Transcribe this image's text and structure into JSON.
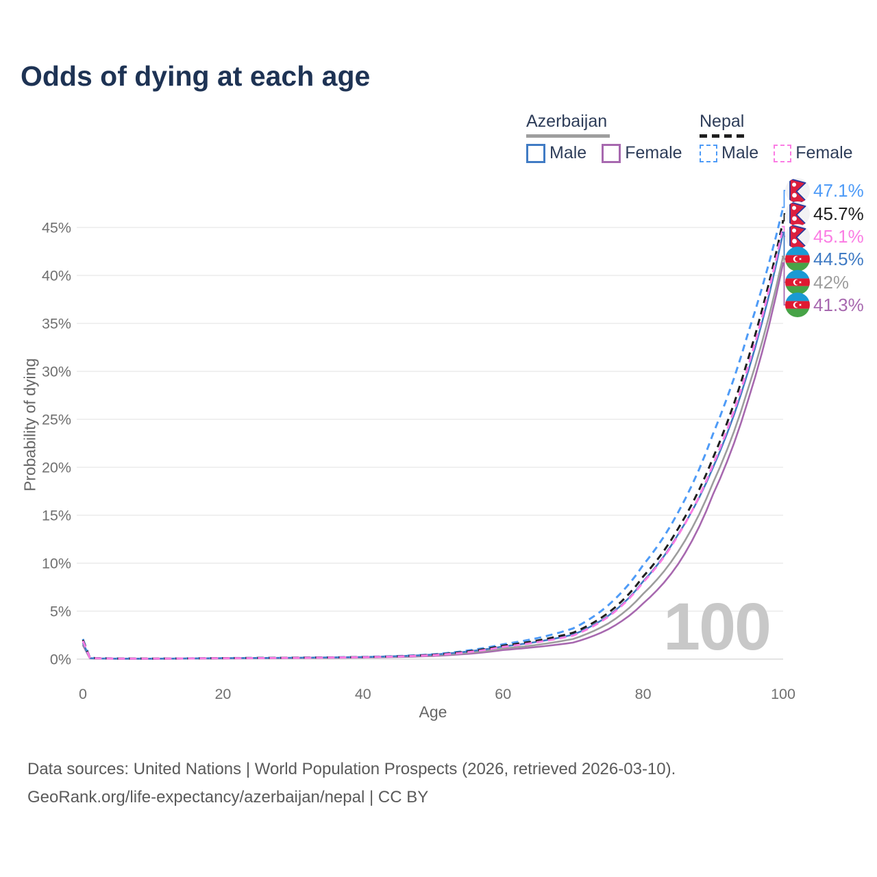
{
  "title": "Odds of dying at each age",
  "watermark": "100",
  "legend": {
    "azerbaijan": {
      "name": "Azerbaijan",
      "male": "Male",
      "female": "Female",
      "line_style": "solid",
      "line_color": "#9D9D9D"
    },
    "nepal": {
      "name": "Nepal",
      "male": "Male",
      "female": "Female",
      "line_style": "dashed",
      "line_color": "#1F1F1F"
    }
  },
  "axes": {
    "y_label": "Probability of dying",
    "x_label": "Age",
    "y_ticks": [
      0,
      5,
      10,
      15,
      20,
      25,
      30,
      35,
      40,
      45
    ],
    "y_tick_suffix": "%",
    "x_ticks": [
      0,
      20,
      40,
      60,
      80,
      100
    ]
  },
  "chart_data": {
    "type": "line",
    "title": "Odds of dying at each age",
    "xlabel": "Age",
    "ylabel": "Probability of dying",
    "x_range": [
      0,
      100
    ],
    "y_range_percent": [
      0,
      45
    ],
    "grid": "horizontal",
    "legend_position": "top-right",
    "ages": [
      0,
      1,
      2,
      5,
      10,
      15,
      20,
      25,
      30,
      35,
      40,
      45,
      50,
      55,
      60,
      65,
      70,
      75,
      80,
      85,
      90,
      95,
      100
    ],
    "series": [
      {
        "id": "nepal-male",
        "name": "Nepal Male",
        "country": "nepal",
        "sex": "Male",
        "style": "dashed",
        "color": "#4E9BF7",
        "end_label": "47.1%",
        "end_value": 47.1,
        "values": [
          2.1,
          0.15,
          0.1,
          0.07,
          0.06,
          0.08,
          0.11,
          0.13,
          0.15,
          0.18,
          0.23,
          0.32,
          0.5,
          0.9,
          1.55,
          2.2,
          3.2,
          5.6,
          9.8,
          15.3,
          23.5,
          34.0,
          47.1
        ]
      },
      {
        "id": "nepal-both",
        "name": "Nepal Both sexes",
        "country": "nepal",
        "sex": "Both",
        "style": "dashed",
        "color": "#1F1F1F",
        "end_label": "45.7%",
        "end_value": 45.7,
        "values": [
          2.0,
          0.14,
          0.09,
          0.065,
          0.055,
          0.075,
          0.1,
          0.12,
          0.14,
          0.17,
          0.21,
          0.29,
          0.45,
          0.8,
          1.4,
          1.95,
          2.75,
          4.8,
          8.6,
          13.6,
          21.0,
          31.3,
          45.7
        ]
      },
      {
        "id": "nepal-female",
        "name": "Nepal Female",
        "country": "nepal",
        "sex": "Female",
        "style": "dashed",
        "color": "#FB7DE4",
        "end_label": "45.1%",
        "end_value": 45.1,
        "values": [
          1.9,
          0.13,
          0.085,
          0.06,
          0.05,
          0.07,
          0.09,
          0.11,
          0.13,
          0.16,
          0.2,
          0.27,
          0.41,
          0.72,
          1.28,
          1.78,
          2.45,
          4.4,
          8.0,
          12.9,
          20.3,
          30.5,
          45.1
        ]
      },
      {
        "id": "az-male",
        "name": "Azerbaijan Male",
        "country": "azerbaijan",
        "sex": "Male",
        "style": "solid",
        "color": "#407BC4",
        "end_label": "44.5%",
        "end_value": 44.5,
        "values": [
          1.7,
          0.1,
          0.07,
          0.05,
          0.05,
          0.07,
          0.1,
          0.12,
          0.14,
          0.17,
          0.22,
          0.31,
          0.47,
          0.8,
          1.32,
          1.82,
          2.55,
          4.5,
          8.1,
          13.0,
          20.0,
          30.0,
          44.5
        ]
      },
      {
        "id": "az-both",
        "name": "Azerbaijan Both sexes",
        "country": "azerbaijan",
        "sex": "Both",
        "style": "solid",
        "color": "#9D9D9D",
        "end_label": "42%",
        "end_value": 42.0,
        "values": [
          1.55,
          0.09,
          0.065,
          0.045,
          0.045,
          0.06,
          0.085,
          0.1,
          0.12,
          0.15,
          0.19,
          0.26,
          0.39,
          0.65,
          1.1,
          1.5,
          2.1,
          3.7,
          6.8,
          11.2,
          18.4,
          28.2,
          42.0
        ]
      },
      {
        "id": "az-female",
        "name": "Azerbaijan Female",
        "country": "azerbaijan",
        "sex": "Female",
        "style": "solid",
        "color": "#A768AF",
        "end_label": "41.3%",
        "end_value": 41.3,
        "values": [
          1.45,
          0.08,
          0.06,
          0.04,
          0.04,
          0.055,
          0.075,
          0.09,
          0.105,
          0.13,
          0.16,
          0.22,
          0.33,
          0.55,
          0.95,
          1.28,
          1.72,
          3.1,
          5.8,
          9.9,
          17.2,
          27.0,
          41.3
        ]
      }
    ],
    "flag_colors": {
      "nepal": {
        "crimson": "#DC1F3E",
        "border_blue": "#2B3B9E",
        "background": "#F2F2F4",
        "symbols": "#FFFFFF"
      },
      "azerbaijan": {
        "blue": "#1A9AD4",
        "red": "#E01931",
        "green": "#47A347",
        "symbols": "#FFFFFF"
      }
    }
  },
  "footer": {
    "line1": "Data sources: United Nations | World Population Prospects (2026, retrieved 2026-03-10).",
    "line2": "GeoRank.org/life-expectancy/azerbaijan/nepal | CC BY"
  },
  "style_colors": {
    "title": "#1E3354",
    "legend_text": "#2E3D59",
    "tick_text": "#707070",
    "axis_label_text": "#666666",
    "gridline": "#ECECEC",
    "zero_line": "#DCDCDC",
    "watermark": "#C8C8C8",
    "footer_text": "#5A5A5A"
  }
}
